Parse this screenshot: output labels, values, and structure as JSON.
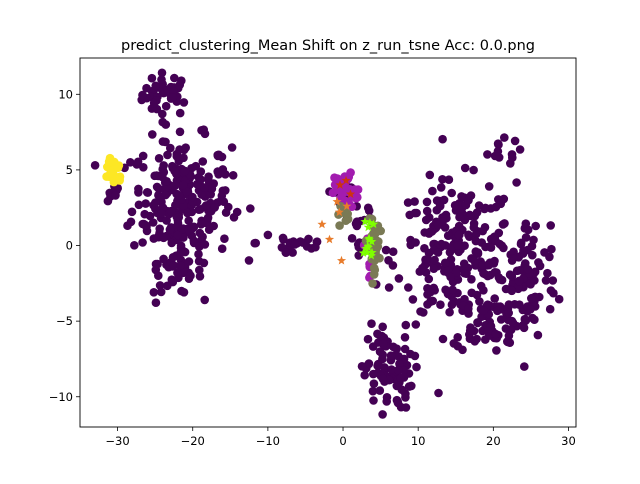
{
  "chart_data": {
    "type": "scatter",
    "title": "predict_clustering_Mean Shift on z_run_tsne  Acc: 0.0.png",
    "xlim": [
      -35,
      31
    ],
    "ylim": [
      -12,
      12.4
    ],
    "xticks": [
      -30,
      -20,
      -10,
      0,
      10,
      20,
      30
    ],
    "xtick_labels": [
      "−30",
      "−20",
      "−10",
      "0",
      "10",
      "20",
      "30"
    ],
    "yticks": [
      -10,
      -5,
      0,
      5,
      10
    ],
    "ytick_labels": [
      "−10",
      "−5",
      "0",
      "5",
      "10"
    ],
    "grid": false,
    "legend": "none",
    "series": [
      {
        "color": "#440154",
        "marker": "circle",
        "clusters": [
          {
            "cx": -23.5,
            "cy": 10.0,
            "sx": 1.6,
            "sy": 0.7,
            "n": 40
          },
          {
            "cx": -21.5,
            "cy": 3.0,
            "sx": 3.3,
            "sy": 2.0,
            "n": 260
          },
          {
            "cx": -22.0,
            "cy": -1.8,
            "sx": 1.6,
            "sy": 0.7,
            "n": 35
          },
          {
            "cx": -30.5,
            "cy": 3.3,
            "sx": 0.5,
            "sy": 0.6,
            "n": 6
          },
          {
            "cx": -6.5,
            "cy": 0.2,
            "sx": 2.5,
            "sy": 0.6,
            "n": 22
          },
          {
            "cx": 15.0,
            "cy": -0.5,
            "sx": 4.0,
            "sy": 2.3,
            "n": 240
          },
          {
            "cx": 24.5,
            "cy": -2.3,
            "sx": 2.0,
            "sy": 2.0,
            "n": 90
          },
          {
            "cx": 19.5,
            "cy": -5.0,
            "sx": 2.5,
            "sy": 1.0,
            "n": 60
          },
          {
            "cx": 20.5,
            "cy": 6.2,
            "sx": 1.5,
            "sy": 0.4,
            "n": 12
          },
          {
            "cx": 6.0,
            "cy": -8.5,
            "sx": 1.6,
            "sy": 1.2,
            "n": 75
          },
          {
            "cx": 5.0,
            "cy": -6.0,
            "sx": 0.6,
            "sy": 0.6,
            "n": 10
          },
          {
            "cx": 0.0,
            "cy": 3.5,
            "sx": 0.8,
            "sy": 0.5,
            "n": 22
          },
          {
            "cx": 2.5,
            "cy": 0.3,
            "sx": 1.0,
            "sy": 1.2,
            "n": 18
          }
        ]
      },
      {
        "color": "#fde725",
        "marker": "circle",
        "clusters": [
          {
            "cx": -30.5,
            "cy": 5.0,
            "sx": 0.6,
            "sy": 0.5,
            "n": 28
          }
        ]
      },
      {
        "color": "#a21caf",
        "marker": "circle",
        "clusters": [
          {
            "cx": 0.0,
            "cy": 4.0,
            "sx": 0.6,
            "sy": 0.4,
            "n": 30
          },
          {
            "cx": 1.5,
            "cy": 3.2,
            "sx": 0.5,
            "sy": 0.3,
            "n": 8
          },
          {
            "cx": 3.4,
            "cy": -0.4,
            "sx": 0.3,
            "sy": 1.0,
            "n": 10
          }
        ]
      },
      {
        "color": "#7a7a55",
        "marker": "circle",
        "clusters": [
          {
            "cx": 4.1,
            "cy": 0.0,
            "sx": 0.35,
            "sy": 0.8,
            "n": 55
          },
          {
            "cx": -0.2,
            "cy": 2.1,
            "sx": 0.5,
            "sy": 0.3,
            "n": 8
          }
        ]
      },
      {
        "color": "#7fff00",
        "marker": "star",
        "clusters": [
          {
            "cx": 3.6,
            "cy": 0.0,
            "sx": 0.4,
            "sy": 1.0,
            "n": 14
          }
        ]
      },
      {
        "color": "#e87c2c",
        "marker": "star",
        "points": [
          [
            -2.8,
            1.4
          ],
          [
            -1.8,
            0.4
          ],
          [
            -0.2,
            -1.0
          ],
          [
            -0.5,
            2.2
          ],
          [
            -0.8,
            2.9
          ],
          [
            0.5,
            2.6
          ]
        ]
      },
      {
        "color": "#cc3311",
        "marker": "star",
        "points": [
          [
            -0.4,
            4.0
          ],
          [
            0.4,
            4.3
          ],
          [
            1.0,
            3.4
          ]
        ]
      }
    ]
  }
}
